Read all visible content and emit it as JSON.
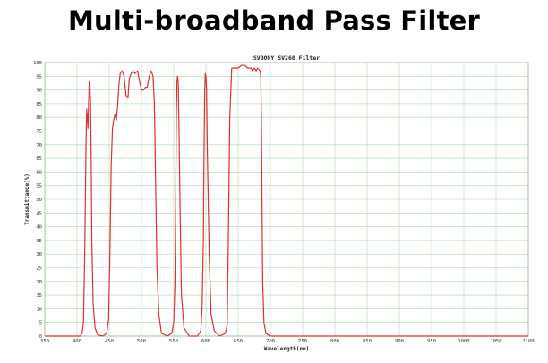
{
  "heading": "Multi-broadband Pass Filter",
  "colors": {
    "grid": "#aed9ae",
    "frame": "#8cbf8c",
    "curve": "#e03030",
    "background": "#ffffff"
  },
  "chart_data": {
    "type": "line",
    "title": "SVBONY SV260 Filter",
    "xlabel": "Wavelength(nm)",
    "ylabel": "Transmittance(%)",
    "xlim": [
      350,
      1100
    ],
    "ylim": [
      0,
      100
    ],
    "x_ticks": [
      350,
      400,
      450,
      500,
      550,
      600,
      650,
      700,
      750,
      800,
      850,
      900,
      950,
      1000,
      1050,
      1100
    ],
    "y_ticks": [
      0,
      5,
      10,
      15,
      20,
      25,
      30,
      35,
      40,
      45,
      50,
      55,
      60,
      65,
      70,
      75,
      80,
      85,
      90,
      95,
      100
    ],
    "grid": true,
    "legend": "none",
    "series": [
      {
        "color": "#e03030",
        "x": [
          350,
          405,
          408,
          410,
          412,
          414,
          415,
          416,
          417,
          418,
          419,
          420,
          421,
          422,
          423,
          425,
          428,
          432,
          440,
          446,
          449,
          451,
          453,
          455,
          457,
          459,
          461,
          463,
          465,
          467,
          470,
          473,
          476,
          479,
          481,
          484,
          487,
          490,
          494,
          497,
          500,
          503,
          506,
          509,
          512,
          515,
          518,
          520,
          522,
          524,
          527,
          531,
          540,
          547,
          550,
          552,
          553,
          554,
          555,
          556,
          557,
          558,
          560,
          562,
          566,
          574,
          587,
          592,
          594,
          596,
          597,
          598,
          599,
          600,
          601,
          602,
          605,
          608,
          613,
          621,
          630,
          633,
          635,
          637,
          640,
          645,
          650,
          655,
          660,
          665,
          670,
          672,
          675,
          678,
          680,
          684,
          685,
          686,
          687,
          688,
          690,
          693,
          700,
          1100
        ],
        "y": [
          0,
          0,
          1,
          5,
          30,
          70,
          83,
          80,
          76,
          85,
          93,
          92,
          85,
          65,
          35,
          12,
          3,
          0.5,
          0,
          1,
          6,
          30,
          62,
          76,
          79,
          81,
          79,
          84,
          92,
          96,
          97,
          95,
          88,
          87,
          94,
          96,
          97,
          96,
          97,
          93,
          90,
          90,
          91,
          91,
          95,
          97,
          95,
          85,
          55,
          25,
          8,
          1,
          0,
          1,
          5,
          20,
          45,
          78,
          93,
          95,
          93,
          80,
          45,
          15,
          3,
          0,
          0,
          2,
          10,
          35,
          65,
          88,
          96,
          95,
          90,
          70,
          30,
          8,
          2,
          0,
          1,
          4,
          40,
          80,
          98,
          98,
          98,
          99,
          99,
          98,
          98,
          97,
          98,
          97,
          98,
          97,
          95,
          80,
          50,
          20,
          5,
          1,
          0,
          0
        ]
      }
    ]
  }
}
